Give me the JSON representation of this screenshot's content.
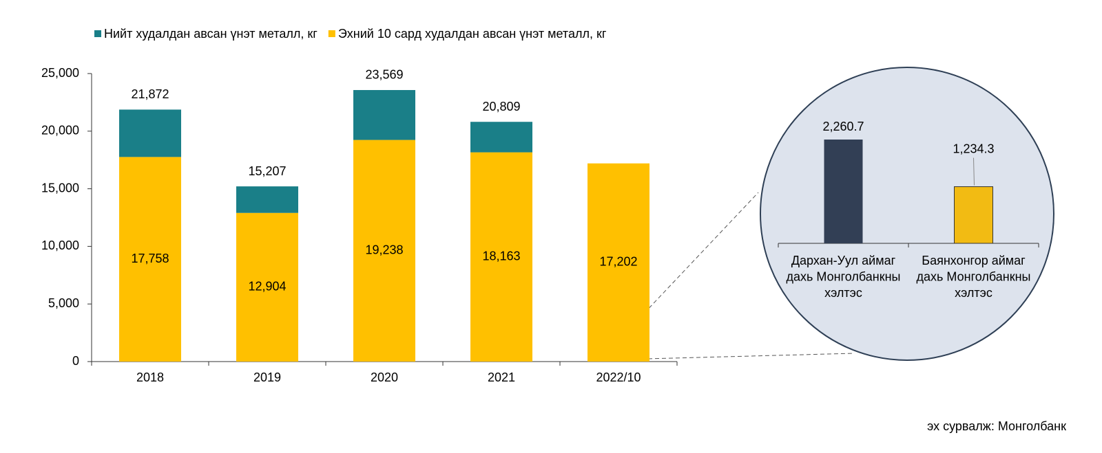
{
  "chart_data": [
    {
      "type": "stacked_bar",
      "categories": [
        "2018",
        "2019",
        "2020",
        "2021",
        "2022/10"
      ],
      "series": [
        {
          "name": "Эхний 10 сард худалдан авсан үнэт металл, кг",
          "color": "#ffc000",
          "values": [
            17758,
            12904,
            19238,
            18163,
            17202
          ],
          "value_labels": [
            "17,758",
            "12,904",
            "19,238",
            "18,163",
            "17,202"
          ]
        },
        {
          "name": "Нийт худалдан авсан үнэт металл, кг",
          "color": "#1a7f88",
          "values": [
            4114,
            2303,
            4331,
            2646,
            null
          ]
        }
      ],
      "legend_order": [
        1,
        0
      ],
      "totals": [
        21872,
        15207,
        23569,
        20809,
        null
      ],
      "total_labels": [
        "21,872",
        "15,207",
        "23,569",
        "20,809",
        null
      ],
      "ylim": [
        0,
        25000
      ],
      "yticks": [
        0,
        {
          "value": 5000,
          "label": "5,000"
        },
        {
          "value": 10000,
          "label": "10,000"
        },
        {
          "value": 15000,
          "label": "15,000"
        },
        {
          "value": 20000,
          "label": "20,000"
        },
        {
          "value": 25000,
          "label": "25,000"
        }
      ]
    },
    {
      "type": "bar",
      "categories": [
        [
          "Дархан-Уул аймаг",
          "дахь Монголбанкны",
          "хэлтэс"
        ],
        [
          "Баянхонгор аймаг",
          "дахь Монголбанкны",
          "хэлтэс"
        ]
      ],
      "values": [
        2260.7,
        1234.3
      ],
      "value_labels": [
        "2,260.7",
        "1,234.3"
      ],
      "colors": [
        "#323f55",
        "#f2bb13"
      ]
    }
  ],
  "source": "эх сурвалж: Монголбанк"
}
